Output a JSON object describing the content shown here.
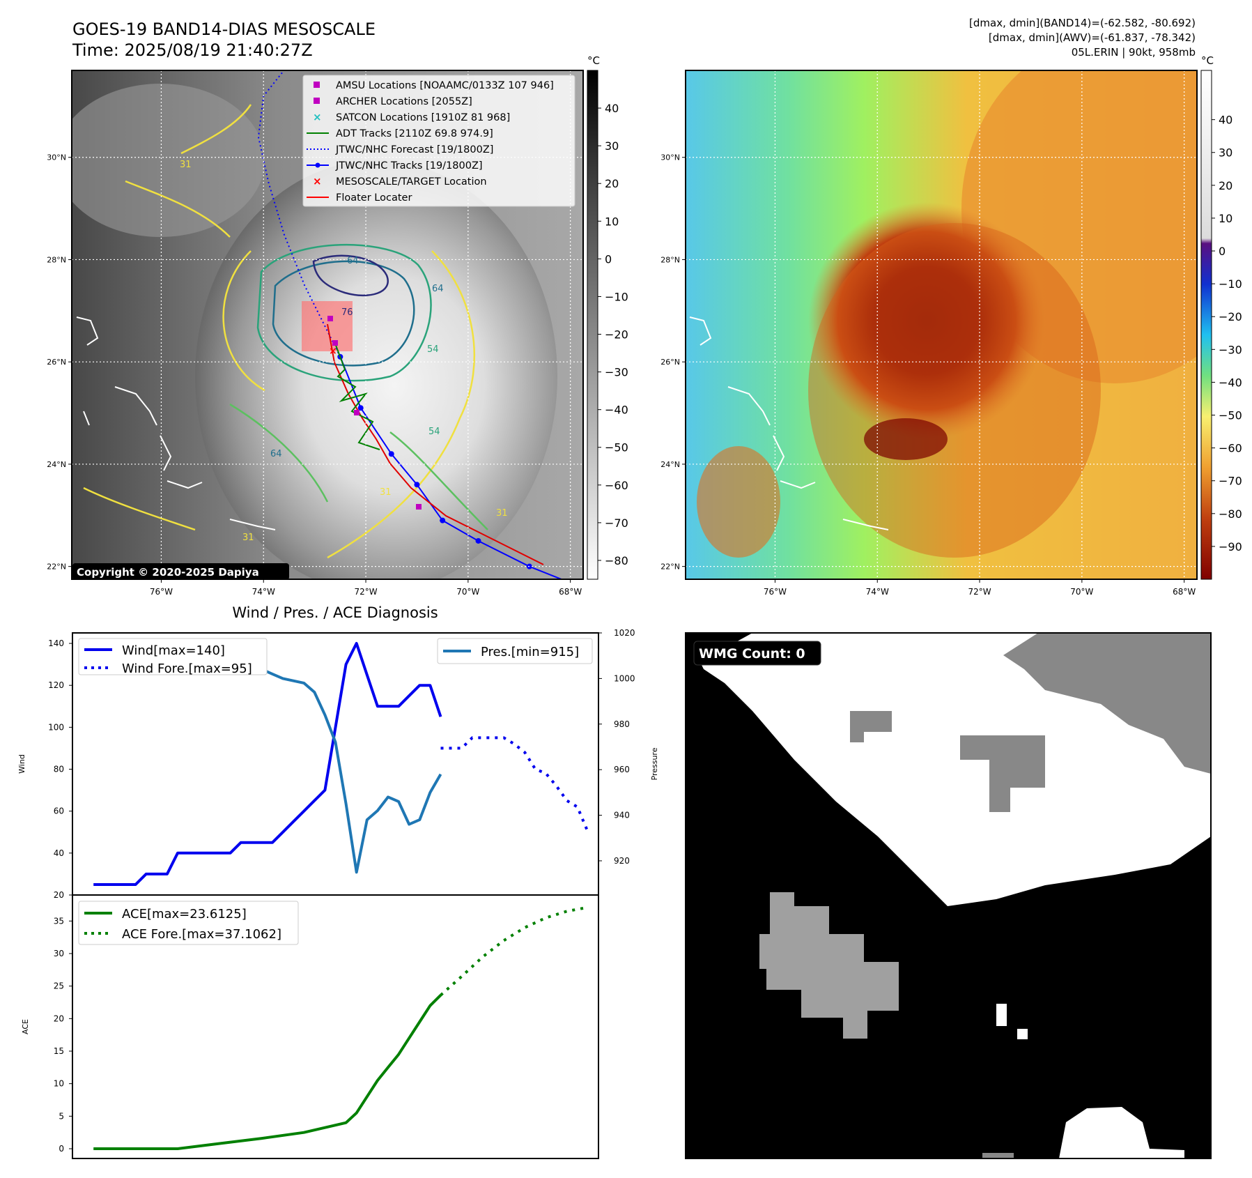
{
  "header": {
    "title_line1": "GOES-19 BAND14-DIAS MESOSCALE",
    "title_line2": "Time: 2025/08/19 21:40:27Z",
    "info_line1": "[dmax, dmin](BAND14)=(-62.582, -80.692)",
    "info_line2": "[dmax, dmin](AWV)=(-61.837, -78.342)",
    "info_line3": "05L.ERIN | 90kt, 958mb"
  },
  "maps": {
    "lon_ticks": [
      "76°W",
      "74°W",
      "72°W",
      "70°W",
      "68°W"
    ],
    "lon_values": [
      -76,
      -74,
      -72,
      -70,
      -68
    ],
    "lat_ticks": [
      "30°N",
      "28°N",
      "26°N",
      "24°N",
      "22°N"
    ],
    "lat_values": [
      30,
      28,
      26,
      24,
      22
    ],
    "lon_range": [
      -77.75,
      -67.75
    ],
    "lat_range": [
      21.75,
      31.7
    ],
    "unit": "°C",
    "copyright": "Copyright © 2020-2025 Dapiya",
    "gray_cbar_ticks": [
      "40",
      "30",
      "20",
      "10",
      "0",
      "−10",
      "−20",
      "−30",
      "−40",
      "−50",
      "−60",
      "−70",
      "−80"
    ],
    "gray_cbar_values": [
      40,
      30,
      20,
      10,
      0,
      -10,
      -20,
      -30,
      -40,
      -50,
      -60,
      -70,
      -80
    ],
    "gray_cbar_range": [
      -85,
      50
    ],
    "color_cbar_ticks": [
      "40",
      "30",
      "20",
      "10",
      "0",
      "−10",
      "−20",
      "−30",
      "−40",
      "−50",
      "−60",
      "−70",
      "−80",
      "−90"
    ],
    "color_cbar_values": [
      40,
      30,
      20,
      10,
      0,
      -10,
      -20,
      -30,
      -40,
      -50,
      -60,
      -70,
      -80,
      -90
    ],
    "color_cbar_range": [
      -100,
      55
    ],
    "legend": [
      {
        "label": "AMSU Locations [NOAAMC/0133Z 107 946]",
        "color": "#c000c0",
        "marker": "square"
      },
      {
        "label": "ARCHER Locations [2055Z]",
        "color": "#c000c0",
        "marker": "square"
      },
      {
        "label": "SATCON Locations [1910Z 81 968]",
        "color": "#20c0c0",
        "marker": "x"
      },
      {
        "label": "ADT Tracks [2110Z 69.8 974.9]",
        "color": "#008000",
        "marker": "line"
      },
      {
        "label": "JTWC/NHC Forecast [19/1800Z]",
        "color": "#0000ff",
        "marker": "dotted"
      },
      {
        "label": "JTWC/NHC Tracks [19/1800Z]",
        "color": "#0000ff",
        "marker": "line-dot"
      },
      {
        "label": "MESOSCALE/TARGET Location",
        "color": "#ff0000",
        "marker": "x"
      },
      {
        "label": "Floater Locater",
        "color": "#ff0000",
        "marker": "line"
      }
    ],
    "contour_labels": [
      "64",
      "76",
      "54",
      "64",
      "31",
      "31",
      "31",
      "54",
      "64",
      "31"
    ],
    "jtwc_track": [
      [
        -67.8,
        21.6
      ],
      [
        -68.8,
        22.0
      ],
      [
        -69.8,
        22.5
      ],
      [
        -70.5,
        22.9
      ],
      [
        -71.0,
        23.6
      ],
      [
        -71.5,
        24.2
      ],
      [
        -72.1,
        25.1
      ],
      [
        -72.5,
        26.1
      ]
    ],
    "jtwc_forecast": [
      [
        -72.5,
        26.1
      ],
      [
        -72.8,
        26.7
      ],
      [
        -73.2,
        27.5
      ],
      [
        -73.6,
        28.5
      ],
      [
        -73.9,
        29.5
      ],
      [
        -74.1,
        30.4
      ],
      [
        -74.0,
        31.2
      ],
      [
        -73.6,
        31.7
      ]
    ],
    "mesoscale_box": {
      "lon": [
        -73.25,
        -72.25
      ],
      "lat": [
        26.25,
        27.25
      ]
    }
  },
  "chart_data": [
    {
      "type": "line",
      "title": "Wind / Pres. / ACE Diagnosis",
      "ylabel": "Wind",
      "ylabel_right": "Pressure",
      "ylim": [
        20,
        145
      ],
      "ylim_right": [
        905,
        1020
      ],
      "y_ticks": [
        20,
        40,
        60,
        80,
        100,
        120,
        140
      ],
      "y_ticks_right": [
        920,
        940,
        960,
        980,
        1000,
        1020
      ],
      "xlim": [
        -2,
        48
      ],
      "series": [
        {
          "name": "Wind[max=140]",
          "style": "solid",
          "color": "#0000ee",
          "x": [
            0,
            1,
            2,
            3,
            4,
            5,
            6,
            7,
            8,
            9,
            10,
            11,
            12,
            13,
            14,
            15,
            16,
            17,
            18,
            19,
            20,
            21,
            22,
            23,
            24,
            25,
            26,
            27,
            28,
            29,
            30,
            31,
            32,
            33
          ],
          "values": [
            25,
            25,
            25,
            25,
            25,
            30,
            30,
            30,
            40,
            40,
            40,
            40,
            40,
            40,
            45,
            45,
            45,
            45,
            50,
            55,
            60,
            65,
            70,
            100,
            130,
            140,
            125,
            110,
            110,
            110,
            115,
            120,
            120,
            105
          ]
        },
        {
          "name": "Wind Fore.[max=95]",
          "style": "dotted",
          "color": "#0000ee",
          "x": [
            33,
            34,
            35,
            36,
            37,
            38,
            39,
            40,
            41,
            42,
            43,
            44,
            45,
            46,
            47
          ],
          "values": [
            90,
            90,
            90,
            95,
            95,
            95,
            95,
            92,
            88,
            80,
            78,
            72,
            65,
            62,
            50
          ]
        },
        {
          "name": "Pres.[min=915]",
          "style": "solid",
          "color": "#1f77b4",
          "axis": "right",
          "x": [
            0,
            1,
            2,
            3,
            4,
            5,
            6,
            7,
            8,
            9,
            10,
            11,
            12,
            13,
            14,
            15,
            16,
            17,
            18,
            19,
            20,
            21,
            22,
            23,
            24,
            25,
            26,
            27,
            28,
            29,
            30,
            31,
            32,
            33
          ],
          "values": [
            1015,
            1014,
            1010,
            1009,
            1008,
            1008,
            1008,
            1008,
            1008,
            1006,
            1006,
            1006,
            1005,
            1005,
            1004,
            1004,
            1004,
            1002,
            1000,
            999,
            998,
            994,
            984,
            972,
            945,
            915,
            938,
            942,
            948,
            946,
            936,
            938,
            950,
            958
          ]
        }
      ]
    },
    {
      "type": "line",
      "ylabel": "ACE",
      "ylim": [
        -1.5,
        39
      ],
      "y_ticks": [
        0,
        5,
        10,
        15,
        20,
        25,
        30,
        35
      ],
      "xlim": [
        -2,
        48
      ],
      "series": [
        {
          "name": "ACE[max=23.6125]",
          "style": "solid",
          "color": "#008000",
          "x": [
            0,
            4,
            8,
            12,
            16,
            20,
            24,
            25,
            26,
            27,
            28,
            29,
            30,
            31,
            32,
            33
          ],
          "values": [
            0,
            0,
            0,
            0.8,
            1.6,
            2.5,
            4.0,
            5.5,
            8.0,
            10.5,
            12.5,
            14.5,
            17.0,
            19.5,
            22.0,
            23.6
          ]
        },
        {
          "name": "ACE Fore.[max=37.1062]",
          "style": "dotted",
          "color": "#008000",
          "x": [
            33,
            35,
            37,
            39,
            41,
            43,
            45,
            47
          ],
          "values": [
            23.6,
            26.5,
            29.5,
            32.0,
            34.0,
            35.5,
            36.5,
            37.1
          ]
        }
      ]
    }
  ],
  "wmg": {
    "label": "WMG Count: 0"
  }
}
